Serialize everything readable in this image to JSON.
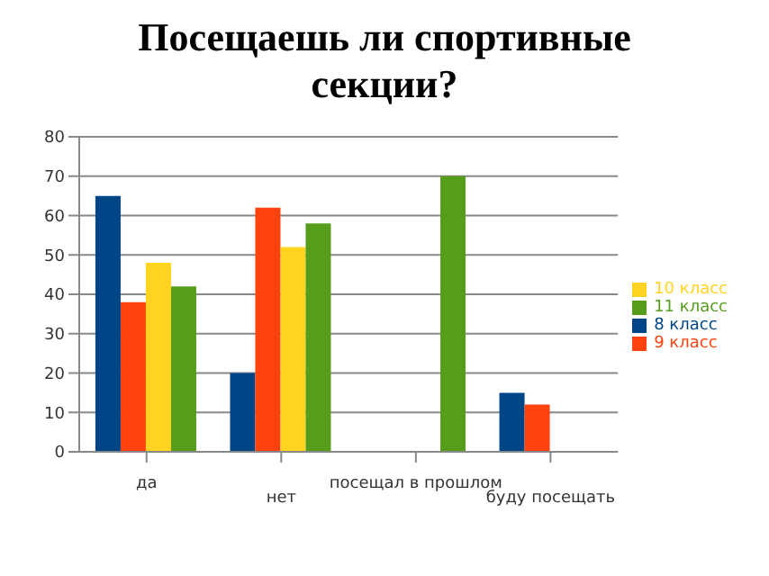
{
  "chart_data": {
    "type": "bar",
    "title": "Посещаешь ли спортивные секции?",
    "categories": [
      "да",
      "нет",
      "посещал в прошлом",
      "буду посещать"
    ],
    "series": [
      {
        "name": "8 класс",
        "color": "#004586",
        "values": [
          65,
          20,
          null,
          15
        ]
      },
      {
        "name": "9 класс",
        "color": "#ff420e",
        "values": [
          38,
          62,
          null,
          12
        ]
      },
      {
        "name": "10 класс",
        "color": "#ffd320",
        "values": [
          48,
          52,
          null,
          null
        ]
      },
      {
        "name": "11 класс",
        "color": "#579d1c",
        "values": [
          42,
          58,
          70,
          null
        ]
      }
    ],
    "ylim": [
      0,
      80
    ],
    "yticks": [
      0,
      10,
      20,
      30,
      40,
      50,
      60,
      70,
      80
    ],
    "grid": "y",
    "legend": "right"
  }
}
